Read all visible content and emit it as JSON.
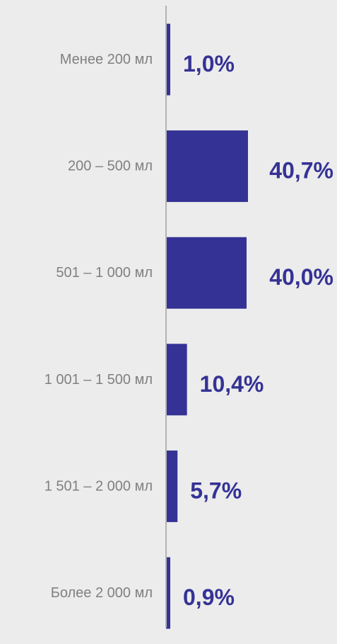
{
  "chart_data": {
    "type": "bar",
    "orientation": "horizontal",
    "categories": [
      "Менее 200 мл",
      "200 – 500 мл",
      "501 – 1 000 мл",
      "1 001 – 1 500 мл",
      "1 501 – 2 000 мл",
      "Более 2 000 мл"
    ],
    "values": [
      1.0,
      40.7,
      40.0,
      10.4,
      5.7,
      0.9
    ],
    "value_labels": [
      "1,0%",
      "40,7%",
      "40,0%",
      "10,4%",
      "5,7%",
      "0,9%"
    ],
    "unit": "%",
    "xlim": [
      0,
      40.7
    ],
    "grid": false,
    "legend": "none",
    "colors": {
      "bar": "#353295",
      "value_text": "#353295",
      "category_text": "#808080",
      "axis": "#b3b3b3",
      "background": "#ececec"
    }
  }
}
